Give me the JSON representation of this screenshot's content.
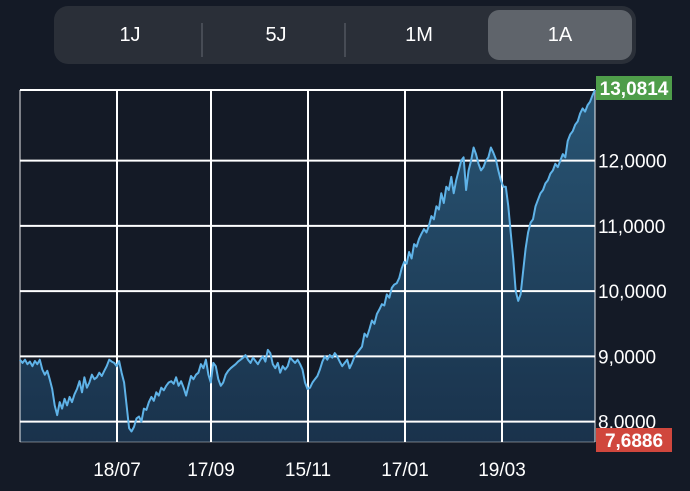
{
  "tabs": [
    {
      "label": "1J",
      "active": false
    },
    {
      "label": "5J",
      "active": false
    },
    {
      "label": "1M",
      "active": false
    },
    {
      "label": "1A",
      "active": true
    }
  ],
  "colors": {
    "background": "#141a26",
    "grid": "#ffffff",
    "line": "#5fb3e8",
    "area_top": "#2a5878",
    "area_bottom": "#1a3550",
    "high_badge": "#4f9d4a",
    "low_badge": "#d0473d"
  },
  "chart_data": {
    "type": "area",
    "title": "",
    "xlabel": "",
    "ylabel": "",
    "x_ticks": [
      "18/07",
      "17/09",
      "15/11",
      "17/01",
      "19/03"
    ],
    "y_ticks": [
      "8,0000",
      "9,0000",
      "10,0000",
      "11,0000",
      "12,0000"
    ],
    "ylim": [
      7.7,
      13.08
    ],
    "grid": true,
    "high": {
      "label": "13,0814",
      "value": 13.0814
    },
    "low": {
      "label": "7,6886",
      "value": 7.6886
    },
    "points_per_index": "one point per trading day (index 0 = first day)",
    "series": [
      {
        "values": [
          8.95,
          8.9,
          8.95,
          8.88,
          8.92,
          8.85,
          8.93,
          8.88,
          8.95,
          8.8,
          8.72,
          8.78,
          8.65,
          8.5,
          8.25,
          8.1,
          8.3,
          8.2,
          8.35,
          8.25,
          8.38,
          8.3,
          8.42,
          8.5,
          8.62,
          8.45,
          8.68,
          8.52,
          8.6,
          8.72,
          8.65,
          8.68,
          8.75,
          8.7,
          8.78,
          8.85,
          8.95,
          8.92,
          8.9,
          8.85,
          8.93,
          8.75,
          8.6,
          8.25,
          7.9,
          7.85,
          7.92,
          8.05,
          8.08,
          8.0,
          8.2,
          8.18,
          8.3,
          8.38,
          8.32,
          8.45,
          8.4,
          8.52,
          8.48,
          8.55,
          8.6,
          8.62,
          8.58,
          8.68,
          8.55,
          8.62,
          8.52,
          8.4,
          8.55,
          8.7,
          8.65,
          8.72,
          8.75,
          8.88,
          8.82,
          8.95,
          8.72,
          8.6,
          8.9,
          8.85,
          8.65,
          8.55,
          8.6,
          8.72,
          8.78,
          8.82,
          8.85,
          8.88,
          8.92,
          8.95,
          8.98,
          9.02,
          8.95,
          8.9,
          8.98,
          8.93,
          8.88,
          8.95,
          9.0,
          8.92,
          9.1,
          9.05,
          8.88,
          8.82,
          8.9,
          8.75,
          8.85,
          8.8,
          8.85,
          8.98,
          8.94,
          8.9,
          8.95,
          8.88,
          8.8,
          8.6,
          8.5,
          8.52,
          8.6,
          8.65,
          8.7,
          8.8,
          8.92,
          9.0,
          8.95,
          9.02,
          8.98,
          9.05,
          9.0,
          8.92,
          8.85,
          8.9,
          8.95,
          8.82,
          8.9,
          9.0,
          9.05,
          9.1,
          9.15,
          9.35,
          9.3,
          9.42,
          9.55,
          9.5,
          9.65,
          9.72,
          9.8,
          9.78,
          9.95,
          9.9,
          10.05,
          10.1,
          10.12,
          10.2,
          10.35,
          10.45,
          10.42,
          10.6,
          10.5,
          10.72,
          10.68,
          10.8,
          10.88,
          10.95,
          10.9,
          11.0,
          11.15,
          11.1,
          11.3,
          11.25,
          11.5,
          11.35,
          11.6,
          11.55,
          11.75,
          11.5,
          11.7,
          11.85,
          12.0,
          12.05,
          11.55,
          11.85,
          12.0,
          12.2,
          12.1,
          11.95,
          11.85,
          11.9,
          12.0,
          12.05,
          12.2,
          12.12,
          12.02,
          11.85,
          11.7,
          11.6,
          11.6,
          11.3,
          10.9,
          10.5,
          10.0,
          9.85,
          9.95,
          10.3,
          10.65,
          10.9,
          11.05,
          11.1,
          11.3,
          11.4,
          11.5,
          11.55,
          11.65,
          11.7,
          11.8,
          11.85,
          11.95,
          11.9,
          12.0,
          12.1,
          12.05,
          12.3,
          12.4,
          12.45,
          12.55,
          12.6,
          12.72,
          12.8,
          12.75,
          12.85,
          12.9,
          13.0,
          13.08
        ]
      }
    ]
  }
}
